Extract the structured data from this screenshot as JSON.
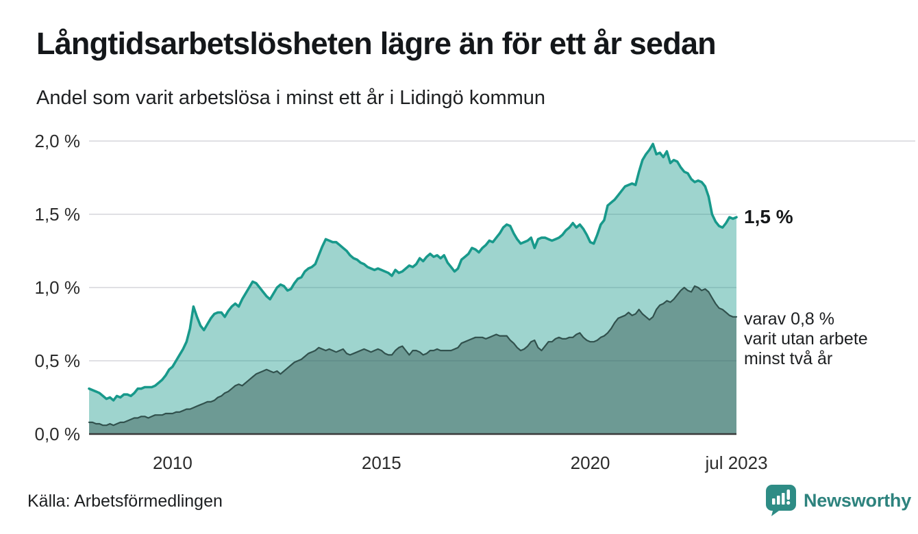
{
  "header": {
    "title": "Långtidsarbetslösheten lägre än för ett år sedan",
    "subtitle": "Andel som varit arbetslösa i minst ett år i Lidingö kommun"
  },
  "chart": {
    "yticks": [
      {
        "label": "2,0 %",
        "value": 2.0
      },
      {
        "label": "1,5 %",
        "value": 1.5
      },
      {
        "label": "1,0 %",
        "value": 1.0
      },
      {
        "label": "0,5 %",
        "value": 0.5
      },
      {
        "label": "0,0 %",
        "value": 0.0
      }
    ],
    "xticks": [
      {
        "label": "2010",
        "month_index": 24
      },
      {
        "label": "2015",
        "month_index": 84
      },
      {
        "label": "2020",
        "month_index": 144
      },
      {
        "label": "jul 2023",
        "month_index": 186
      }
    ],
    "annotations": {
      "series1_end": "1,5 %",
      "series2_lines": [
        "varav 0,8 %",
        "varit utan arbete",
        "minst två år"
      ]
    }
  },
  "chart_data": {
    "type": "area",
    "title": "Långtidsarbetslösheten lägre än för ett år sedan",
    "subtitle": "Andel som varit arbetslösa i minst ett år i Lidingö kommun",
    "x_range": [
      "2008-01",
      "2023-07"
    ],
    "x_frequency": "monthly",
    "y_unit": "%",
    "ylim": [
      0,
      2.0
    ],
    "ytick_labels": [
      "2,0 %",
      "1,5 %",
      "1,0 %",
      "0,5 %",
      "0,0 %"
    ],
    "xtick_labels": [
      "2010",
      "2015",
      "2020",
      "jul 2023"
    ],
    "grid": "horizontal",
    "legend": "end-of-line annotations",
    "series": [
      {
        "name": "Andel arbetslösa minst ett år",
        "end_label": "1,5 %",
        "end_value": 1.48,
        "color": "#18998b",
        "fill": "rgba(24,153,139,0.42)",
        "values": [
          0.31,
          0.3,
          0.29,
          0.28,
          0.26,
          0.24,
          0.25,
          0.23,
          0.26,
          0.25,
          0.27,
          0.27,
          0.26,
          0.28,
          0.31,
          0.31,
          0.32,
          0.32,
          0.32,
          0.33,
          0.35,
          0.37,
          0.4,
          0.44,
          0.46,
          0.5,
          0.54,
          0.58,
          0.63,
          0.72,
          0.87,
          0.8,
          0.74,
          0.71,
          0.75,
          0.79,
          0.82,
          0.83,
          0.83,
          0.8,
          0.84,
          0.87,
          0.89,
          0.87,
          0.92,
          0.96,
          1.0,
          1.04,
          1.03,
          1.0,
          0.97,
          0.94,
          0.92,
          0.96,
          1.0,
          1.02,
          1.01,
          0.98,
          0.99,
          1.03,
          1.06,
          1.07,
          1.11,
          1.13,
          1.14,
          1.16,
          1.22,
          1.28,
          1.33,
          1.32,
          1.31,
          1.31,
          1.29,
          1.27,
          1.25,
          1.22,
          1.2,
          1.19,
          1.17,
          1.16,
          1.14,
          1.13,
          1.12,
          1.13,
          1.12,
          1.11,
          1.1,
          1.08,
          1.12,
          1.1,
          1.11,
          1.13,
          1.15,
          1.14,
          1.16,
          1.2,
          1.18,
          1.21,
          1.23,
          1.21,
          1.22,
          1.2,
          1.22,
          1.17,
          1.14,
          1.11,
          1.13,
          1.19,
          1.21,
          1.23,
          1.27,
          1.26,
          1.24,
          1.27,
          1.29,
          1.32,
          1.31,
          1.34,
          1.37,
          1.41,
          1.43,
          1.42,
          1.37,
          1.33,
          1.3,
          1.31,
          1.32,
          1.34,
          1.27,
          1.33,
          1.34,
          1.34,
          1.33,
          1.32,
          1.33,
          1.34,
          1.36,
          1.39,
          1.41,
          1.44,
          1.41,
          1.43,
          1.4,
          1.36,
          1.31,
          1.3,
          1.36,
          1.43,
          1.46,
          1.56,
          1.58,
          1.6,
          1.63,
          1.66,
          1.69,
          1.7,
          1.71,
          1.7,
          1.79,
          1.87,
          1.91,
          1.94,
          1.98,
          1.91,
          1.92,
          1.89,
          1.93,
          1.85,
          1.87,
          1.86,
          1.82,
          1.79,
          1.78,
          1.74,
          1.72,
          1.73,
          1.72,
          1.69,
          1.62,
          1.5,
          1.45,
          1.42,
          1.41,
          1.44,
          1.48,
          1.47,
          1.48
        ]
      },
      {
        "name": "varav arbetslösa minst två år",
        "end_label": "varav 0,8 % varit utan arbete minst två år",
        "end_value": 0.8,
        "color": "#31514d",
        "fill": "rgba(42,74,69,0.42)",
        "values": [
          0.08,
          0.08,
          0.07,
          0.07,
          0.06,
          0.06,
          0.07,
          0.06,
          0.07,
          0.08,
          0.08,
          0.09,
          0.1,
          0.11,
          0.11,
          0.12,
          0.12,
          0.11,
          0.12,
          0.13,
          0.13,
          0.13,
          0.14,
          0.14,
          0.14,
          0.15,
          0.15,
          0.16,
          0.17,
          0.17,
          0.18,
          0.19,
          0.2,
          0.21,
          0.22,
          0.22,
          0.23,
          0.25,
          0.26,
          0.28,
          0.29,
          0.31,
          0.33,
          0.34,
          0.33,
          0.35,
          0.37,
          0.39,
          0.41,
          0.42,
          0.43,
          0.44,
          0.43,
          0.42,
          0.43,
          0.41,
          0.43,
          0.45,
          0.47,
          0.49,
          0.5,
          0.51,
          0.53,
          0.55,
          0.56,
          0.57,
          0.59,
          0.58,
          0.57,
          0.58,
          0.57,
          0.56,
          0.57,
          0.58,
          0.55,
          0.54,
          0.55,
          0.56,
          0.57,
          0.58,
          0.57,
          0.56,
          0.57,
          0.58,
          0.57,
          0.55,
          0.54,
          0.54,
          0.57,
          0.59,
          0.6,
          0.57,
          0.54,
          0.57,
          0.57,
          0.56,
          0.54,
          0.55,
          0.57,
          0.57,
          0.58,
          0.57,
          0.57,
          0.57,
          0.57,
          0.58,
          0.59,
          0.62,
          0.63,
          0.64,
          0.65,
          0.66,
          0.66,
          0.66,
          0.65,
          0.66,
          0.67,
          0.68,
          0.67,
          0.67,
          0.67,
          0.64,
          0.62,
          0.59,
          0.57,
          0.58,
          0.6,
          0.63,
          0.64,
          0.59,
          0.57,
          0.6,
          0.63,
          0.63,
          0.65,
          0.66,
          0.65,
          0.65,
          0.66,
          0.66,
          0.68,
          0.69,
          0.66,
          0.64,
          0.63,
          0.63,
          0.64,
          0.66,
          0.67,
          0.69,
          0.72,
          0.76,
          0.79,
          0.8,
          0.81,
          0.83,
          0.81,
          0.82,
          0.85,
          0.82,
          0.8,
          0.78,
          0.8,
          0.85,
          0.88,
          0.89,
          0.91,
          0.9,
          0.92,
          0.95,
          0.98,
          1.0,
          0.98,
          0.97,
          1.01,
          1.0,
          0.98,
          0.99,
          0.97,
          0.93,
          0.89,
          0.86,
          0.85,
          0.83,
          0.81,
          0.8,
          0.8
        ]
      }
    ]
  },
  "footer": {
    "source": "Källa: Arbetsförmedlingen",
    "brand": "Newsworthy"
  },
  "colors": {
    "gridline": "#e0e0e4",
    "baseline": "#3a3a3a",
    "series1_line": "#18998b",
    "series2_line": "#31514d",
    "brand_teal": "#2e837e",
    "logo_bubble": "#2e8c85"
  }
}
